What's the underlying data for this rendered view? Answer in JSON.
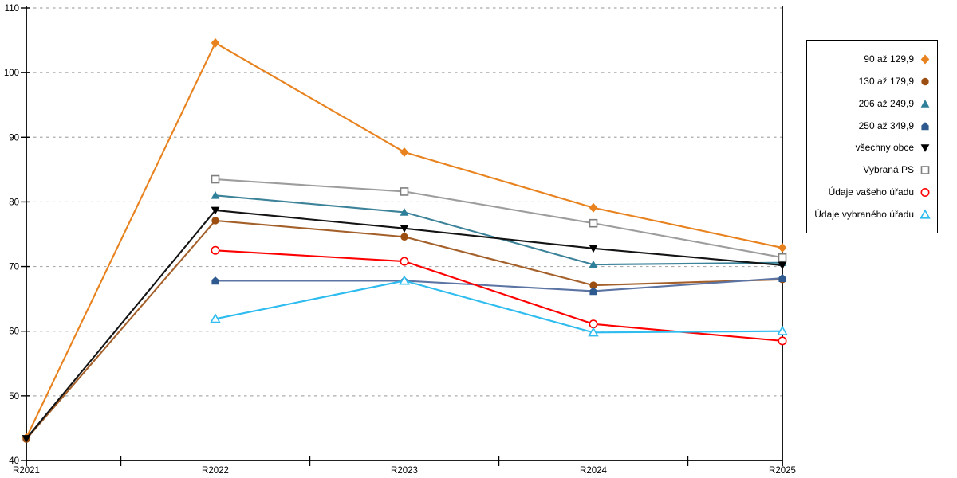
{
  "chart_data": {
    "type": "line",
    "title": "",
    "xlabel": "",
    "ylabel": "",
    "categories": [
      "R2021",
      "R2022",
      "R2023",
      "R2024",
      "R2025"
    ],
    "series": [
      {
        "name": "90 až 129,9",
        "marker": "diamond",
        "style": "filled",
        "color": "#E8821E",
        "line_color": "#E8821E",
        "values": [
          43.5,
          104.6,
          87.7,
          79.1,
          72.9
        ]
      },
      {
        "name": "130 až 179,9",
        "marker": "circle",
        "style": "filled",
        "color": "#9C4E10",
        "line_color": "#A4602A",
        "values": [
          43.3,
          77.1,
          74.6,
          67.1,
          68.0
        ]
      },
      {
        "name": "206 až 249,9",
        "marker": "triangle-up",
        "style": "filled",
        "color": "#2E7F99",
        "line_color": "#3C8299",
        "values": [
          null,
          81.0,
          78.4,
          70.3,
          70.6
        ]
      },
      {
        "name": "250 až 349,9",
        "marker": "pentagon",
        "style": "filled",
        "color": "#2E5A8F",
        "line_color": "#5C74A3",
        "values": [
          null,
          67.8,
          67.8,
          66.2,
          68.2
        ]
      },
      {
        "name": "všechny obce",
        "marker": "triangle-down",
        "style": "filled",
        "color": "#000000",
        "line_color": "#141414",
        "values": [
          43.4,
          78.7,
          75.9,
          72.8,
          70.2
        ]
      },
      {
        "name": "Vybraná PS",
        "marker": "square",
        "style": "open",
        "color": "#7F7F7F",
        "line_color": "#9D9D9D",
        "values": [
          null,
          83.5,
          81.6,
          76.7,
          71.4
        ]
      },
      {
        "name": "Údaje vašeho úřadu",
        "marker": "circle",
        "style": "open",
        "color": "#FF0000",
        "line_color": "#FF0000",
        "values": [
          null,
          72.5,
          70.8,
          61.1,
          58.5
        ]
      },
      {
        "name": "Údaje vybraného úřadu",
        "marker": "triangle-up",
        "style": "open",
        "color": "#2FBCEF",
        "line_color": "#2FBCEF",
        "values": [
          null,
          61.9,
          67.8,
          59.8,
          60.0
        ]
      }
    ],
    "ylim": [
      40,
      110
    ],
    "ytick_step": 10,
    "grid": "horizontal-dashed",
    "gridline_color": "#ABABAB",
    "axis_color": "#000000",
    "legend_position": "right"
  }
}
